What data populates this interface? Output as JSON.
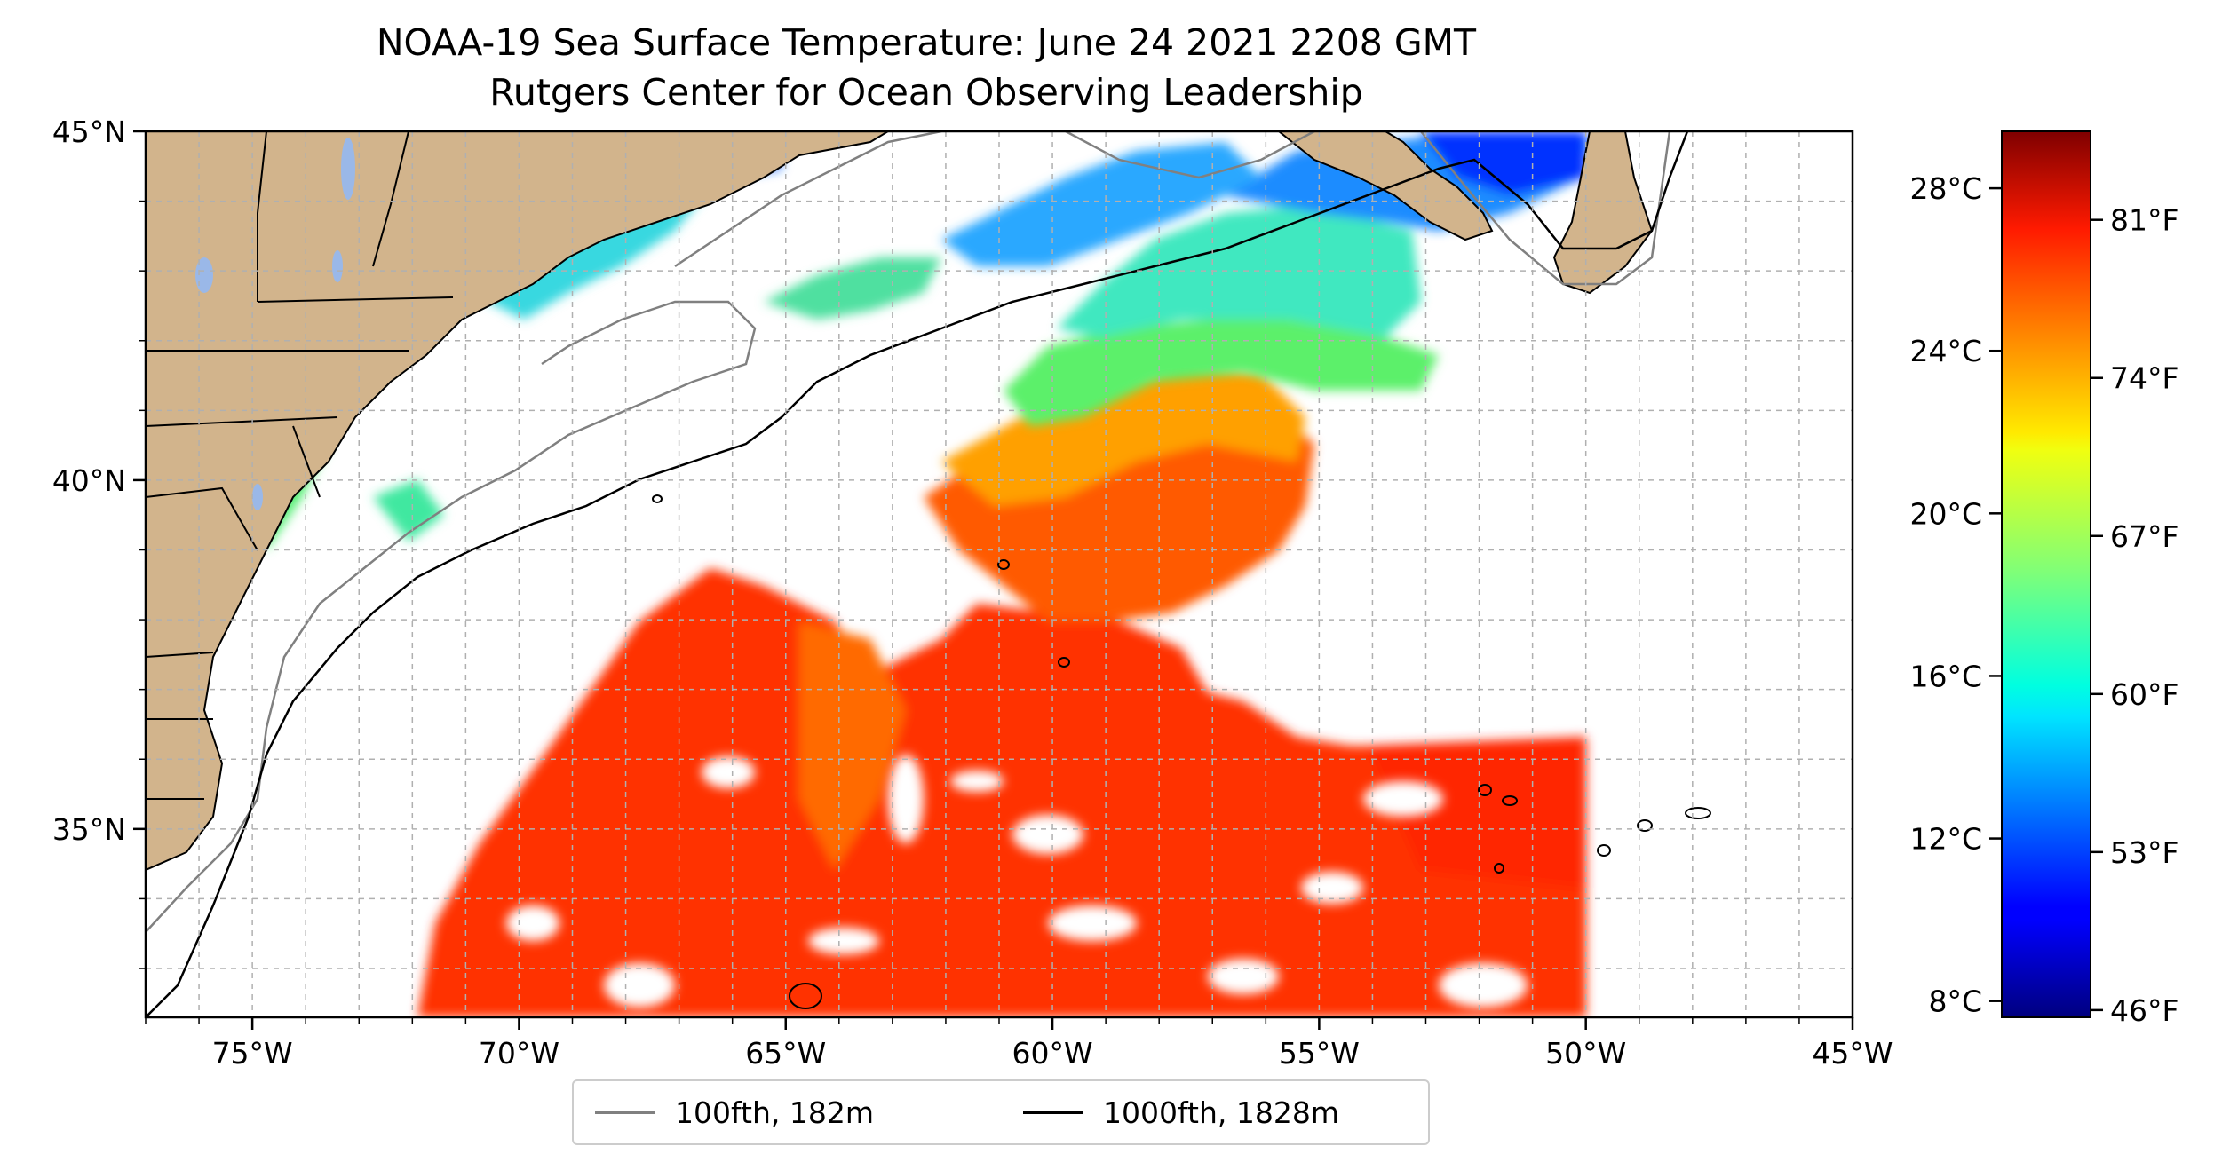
{
  "title": {
    "line1": "NOAA-19 Sea Surface Temperature: June 24 2021 2208 GMT",
    "line2": "Rutgers Center for Ocean Observing Leadership"
  },
  "map": {
    "lon_range": [
      -77,
      -45
    ],
    "lat_range": [
      32.3,
      45
    ],
    "lon_ticks": [
      {
        "value": -75,
        "label": "75°W"
      },
      {
        "value": -70,
        "label": "70°W"
      },
      {
        "value": -65,
        "label": "65°W"
      },
      {
        "value": -60,
        "label": "60°W"
      },
      {
        "value": -55,
        "label": "55°W"
      },
      {
        "value": -50,
        "label": "50°W"
      },
      {
        "value": -45,
        "label": "45°W"
      }
    ],
    "lat_ticks": [
      {
        "value": 45,
        "label": "45°N"
      },
      {
        "value": 40,
        "label": "40°N"
      },
      {
        "value": 35,
        "label": "35°N"
      }
    ],
    "grid": true,
    "land_color": "#d2b48c",
    "lake_color": "#9ab8e8"
  },
  "legend": {
    "placement": "bottom-center",
    "entries": [
      {
        "label": "100fth, 182m",
        "color": "#808080"
      },
      {
        "label": "1000fth, 1828m",
        "color": "#000000"
      }
    ]
  },
  "colorbar": {
    "colormap": "jet",
    "celsius_range": [
      7.6,
      29.4
    ],
    "celsius_ticks": [
      {
        "value": 28,
        "label": "28°C"
      },
      {
        "value": 24,
        "label": "24°C"
      },
      {
        "value": 20,
        "label": "20°C"
      },
      {
        "value": 16,
        "label": "16°C"
      },
      {
        "value": 12,
        "label": "12°C"
      },
      {
        "value": 8,
        "label": "8°C"
      }
    ],
    "fahrenheit_ticks": [
      {
        "value": 81,
        "label": "81°F"
      },
      {
        "value": 74,
        "label": "74°F"
      },
      {
        "value": 67,
        "label": "67°F"
      },
      {
        "value": 60,
        "label": "60°F"
      },
      {
        "value": 53,
        "label": "53°F"
      },
      {
        "value": 46,
        "label": "46°F"
      }
    ]
  }
}
